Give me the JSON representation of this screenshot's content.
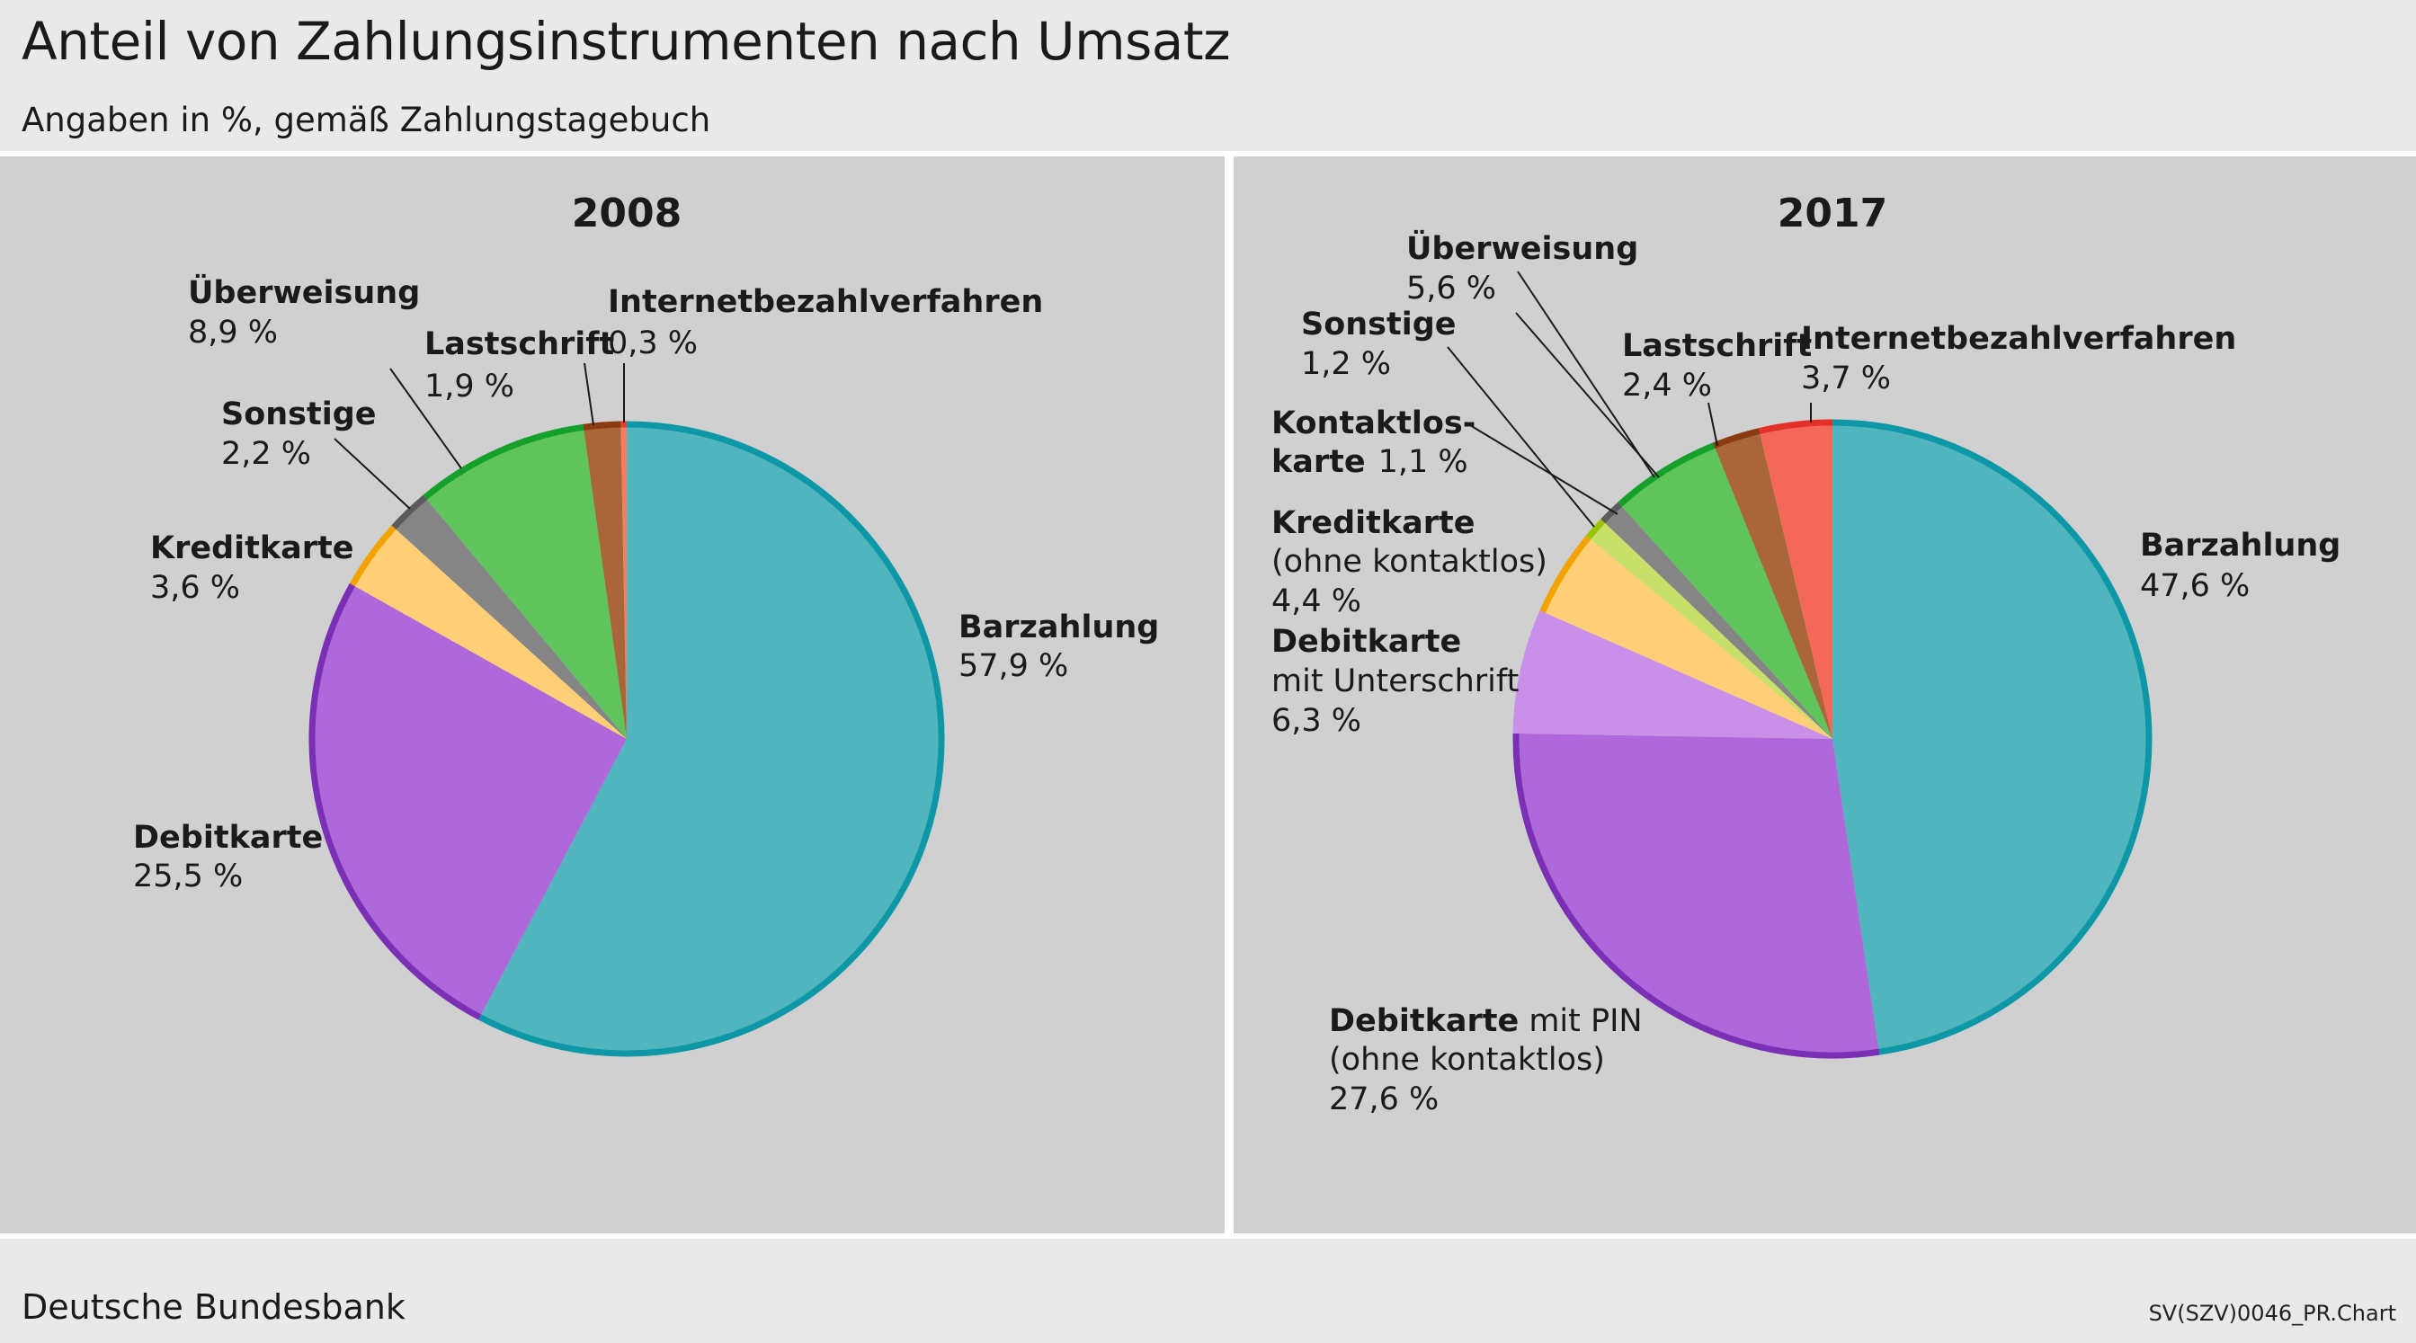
{
  "header": {
    "title": "Anteil von Zahlungsinstrumenten nach Umsatz",
    "subtitle": "Angaben in %, gemäß Zahlungstagebuch"
  },
  "footer": {
    "source": "Deutsche Bundesbank",
    "code": "SV(SZV)0046_PR.Chart"
  },
  "chart_data": [
    {
      "type": "pie",
      "title": "2008",
      "slices": [
        {
          "label": "Barzahlung",
          "value": 57.9,
          "value_label": "57,9 %",
          "color": "#51b5be",
          "edge": "#0e97a6"
        },
        {
          "label": "Debitkarte",
          "value": 25.5,
          "value_label": "25,5 %",
          "color": "#ae68da",
          "edge": "#7b2fb5"
        },
        {
          "label": "Kreditkarte",
          "value": 3.6,
          "value_label": "3,6 %",
          "color": "#fecf77",
          "edge": "#f2a300"
        },
        {
          "label": "Sonstige",
          "value": 2.2,
          "value_label": "2,2 %",
          "color": "#858585",
          "edge": "#5c5c5c"
        },
        {
          "label": "Überweisung",
          "value": 8.9,
          "value_label": "8,9 %",
          "color": "#5fc45c",
          "edge": "#14a02a"
        },
        {
          "label": "Lastschrift",
          "value": 1.9,
          "value_label": "1,9 %",
          "color": "#a8663a",
          "edge": "#8c3a12"
        },
        {
          "label": "Internetbezahlverfahren",
          "value": 0.3,
          "value_label": "0,3 %",
          "color": "#f37c62",
          "edge": "#e5402a"
        }
      ]
    },
    {
      "type": "pie",
      "title": "2017",
      "slices": [
        {
          "label": "Barzahlung",
          "value": 47.6,
          "value_label": "47,6 %",
          "color": "#51b5be",
          "edge": "#0e97a6"
        },
        {
          "label": "Debitkarte mit PIN (ohne kontaktlos)",
          "label_bold": "Debitkarte",
          "label_rest": " mit PIN",
          "label_line2": "(ohne kontaktlos)",
          "value": 27.6,
          "value_label": "27,6 %",
          "color": "#ae68da",
          "edge": "#7b2fb5"
        },
        {
          "label": "Debitkarte mit Unterschrift",
          "label_bold": "Debitkarte",
          "label_line2": "mit Unterschrift",
          "value": 6.3,
          "value_label": "6,3 %",
          "color": "#ca8fe8",
          "edge": "#ca8fe8"
        },
        {
          "label": "Kreditkarte (ohne kontaktlos)",
          "label_bold": "Kreditkarte",
          "label_line2": "(ohne kontaktlos)",
          "value": 4.4,
          "value_label": "4,4 %",
          "color": "#fecf77",
          "edge": "#f2a300"
        },
        {
          "label": "Kontaktloskarte",
          "label_bold": "Kontaktlos-",
          "label_line2_bold": "karte",
          "value": 1.1,
          "value_label": "1,1 %",
          "color": "#c6e06a",
          "edge": "#9bc400"
        },
        {
          "label": "Sonstige",
          "value": 1.2,
          "value_label": "1,2 %",
          "color": "#858585",
          "edge": "#5c5c5c"
        },
        {
          "label": "Überweisung",
          "value": 5.6,
          "value_label": "5,6 %",
          "color": "#5fc45c",
          "edge": "#14a02a"
        },
        {
          "label": "Lastschrift",
          "value": 2.4,
          "value_label": "2,4 %",
          "color": "#a8663a",
          "edge": "#8c3a12"
        },
        {
          "label": "Internetbezahlverfahren",
          "value": 3.7,
          "value_label": "3,7 %",
          "color": "#f4685a",
          "edge": "#e5302a"
        }
      ]
    }
  ]
}
